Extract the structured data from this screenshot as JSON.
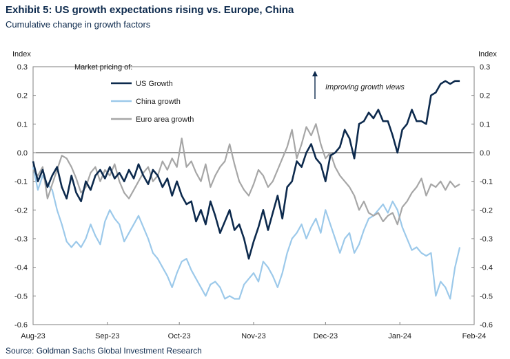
{
  "title": "Exhibit 5: US growth expectations rising vs. Europe, China",
  "subtitle": "Cumulative change in growth factors",
  "source": "Source: Goldman Sachs Global Investment Research",
  "chart_data": {
    "type": "line",
    "ylabel_left": "Index",
    "ylabel_right": "Index",
    "ylim": [
      -0.6,
      0.3
    ],
    "yticks": [
      0.3,
      0.2,
      0.1,
      0.0,
      -0.1,
      -0.2,
      -0.3,
      -0.4,
      -0.5,
      -0.6
    ],
    "ytick_labels": [
      "0.3",
      "0.2",
      "0.1",
      "0.0",
      "-0.1",
      "-0.2",
      "-0.3",
      "-0.4",
      "-0.5",
      "-0.6"
    ],
    "xlim": [
      "2023-08-01",
      "2024-02-01"
    ],
    "xticks": [
      "2023-08-01",
      "2023-09-01",
      "2023-10-01",
      "2023-11-01",
      "2023-12-01",
      "2024-01-01",
      "2024-02-01"
    ],
    "xtick_labels": [
      "Aug-23",
      "Sep-23",
      "Oct-23",
      "Nov-23",
      "Dec-23",
      "Jan-24",
      "Feb-24"
    ],
    "grid": false,
    "zero_line": true,
    "legend_title": "Market pricing of:",
    "legend_position": "top-left",
    "annotation": "Improving growth views",
    "series": [
      {
        "name": "US Growth",
        "color": "#0d2a4d",
        "x": [
          "2023-08-01",
          "2023-08-03",
          "2023-08-05",
          "2023-08-07",
          "2023-08-09",
          "2023-08-11",
          "2023-08-13",
          "2023-08-15",
          "2023-08-17",
          "2023-08-19",
          "2023-08-21",
          "2023-08-23",
          "2023-08-25",
          "2023-08-27",
          "2023-08-29",
          "2023-08-31",
          "2023-09-02",
          "2023-09-04",
          "2023-09-06",
          "2023-09-08",
          "2023-09-10",
          "2023-09-12",
          "2023-09-14",
          "2023-09-16",
          "2023-09-18",
          "2023-09-20",
          "2023-09-22",
          "2023-09-24",
          "2023-09-26",
          "2023-09-28",
          "2023-09-30",
          "2023-10-02",
          "2023-10-04",
          "2023-10-06",
          "2023-10-08",
          "2023-10-10",
          "2023-10-12",
          "2023-10-14",
          "2023-10-16",
          "2023-10-18",
          "2023-10-20",
          "2023-10-22",
          "2023-10-24",
          "2023-10-26",
          "2023-10-28",
          "2023-10-30",
          "2023-11-01",
          "2023-11-03",
          "2023-11-05",
          "2023-11-07",
          "2023-11-09",
          "2023-11-11",
          "2023-11-13",
          "2023-11-15",
          "2023-11-17",
          "2023-11-19",
          "2023-11-21",
          "2023-11-23",
          "2023-11-25",
          "2023-11-27",
          "2023-11-29",
          "2023-12-01",
          "2023-12-03",
          "2023-12-05",
          "2023-12-07",
          "2023-12-09",
          "2023-12-11",
          "2023-12-13",
          "2023-12-15",
          "2023-12-17",
          "2023-12-19",
          "2023-12-21",
          "2023-12-23",
          "2023-12-25",
          "2023-12-27",
          "2023-12-29",
          "2023-12-31",
          "2024-01-02",
          "2024-01-04",
          "2024-01-06",
          "2024-01-08",
          "2024-01-10",
          "2024-01-12",
          "2024-01-14",
          "2024-01-16",
          "2024-01-18",
          "2024-01-20",
          "2024-01-22",
          "2024-01-24",
          "2024-01-26"
        ],
        "values": [
          -0.03,
          -0.1,
          -0.06,
          -0.12,
          -0.08,
          -0.05,
          -0.12,
          -0.16,
          -0.08,
          -0.14,
          -0.17,
          -0.1,
          -0.13,
          -0.08,
          -0.06,
          -0.09,
          -0.05,
          -0.09,
          -0.07,
          -0.1,
          -0.06,
          -0.09,
          -0.04,
          -0.08,
          -0.11,
          -0.06,
          -0.08,
          -0.12,
          -0.09,
          -0.15,
          -0.1,
          -0.15,
          -0.18,
          -0.17,
          -0.24,
          -0.2,
          -0.25,
          -0.17,
          -0.22,
          -0.28,
          -0.24,
          -0.2,
          -0.27,
          -0.25,
          -0.3,
          -0.37,
          -0.31,
          -0.26,
          -0.2,
          -0.27,
          -0.21,
          -0.15,
          -0.23,
          -0.12,
          -0.1,
          -0.03,
          -0.05,
          0.0,
          0.03,
          -0.02,
          -0.04,
          -0.1,
          -0.01,
          0.0,
          0.02,
          0.08,
          0.05,
          -0.02,
          0.1,
          0.11,
          0.14,
          0.12,
          0.15,
          0.11,
          0.11,
          0.06,
          0.0,
          0.08,
          0.1,
          0.15,
          0.11,
          0.11,
          0.1,
          0.2,
          0.21,
          0.24,
          0.25,
          0.24,
          0.25,
          0.25
        ]
      },
      {
        "name": "China growth",
        "color": "#9cc9ea",
        "x": [
          "2023-08-01",
          "2023-08-03",
          "2023-08-05",
          "2023-08-07",
          "2023-08-09",
          "2023-08-11",
          "2023-08-13",
          "2023-08-15",
          "2023-08-17",
          "2023-08-19",
          "2023-08-21",
          "2023-08-23",
          "2023-08-25",
          "2023-08-27",
          "2023-08-29",
          "2023-08-31",
          "2023-09-02",
          "2023-09-04",
          "2023-09-06",
          "2023-09-08",
          "2023-09-10",
          "2023-09-12",
          "2023-09-14",
          "2023-09-16",
          "2023-09-18",
          "2023-09-20",
          "2023-09-22",
          "2023-09-24",
          "2023-09-26",
          "2023-09-28",
          "2023-09-30",
          "2023-10-02",
          "2023-10-04",
          "2023-10-06",
          "2023-10-08",
          "2023-10-10",
          "2023-10-12",
          "2023-10-14",
          "2023-10-16",
          "2023-10-18",
          "2023-10-20",
          "2023-10-22",
          "2023-10-24",
          "2023-10-26",
          "2023-10-28",
          "2023-10-30",
          "2023-11-01",
          "2023-11-03",
          "2023-11-05",
          "2023-11-07",
          "2023-11-09",
          "2023-11-11",
          "2023-11-13",
          "2023-11-15",
          "2023-11-17",
          "2023-11-19",
          "2023-11-21",
          "2023-11-23",
          "2023-11-25",
          "2023-11-27",
          "2023-11-29",
          "2023-12-01",
          "2023-12-03",
          "2023-12-05",
          "2023-12-07",
          "2023-12-09",
          "2023-12-11",
          "2023-12-13",
          "2023-12-15",
          "2023-12-17",
          "2023-12-19",
          "2023-12-21",
          "2023-12-23",
          "2023-12-25",
          "2023-12-27",
          "2023-12-29",
          "2023-12-31",
          "2024-01-02",
          "2024-01-04",
          "2024-01-06",
          "2024-01-08",
          "2024-01-10",
          "2024-01-12",
          "2024-01-14",
          "2024-01-16",
          "2024-01-18",
          "2024-01-20",
          "2024-01-22",
          "2024-01-24",
          "2024-01-26"
        ],
        "values": [
          -0.05,
          -0.13,
          -0.08,
          -0.11,
          -0.13,
          -0.2,
          -0.25,
          -0.31,
          -0.33,
          -0.31,
          -0.33,
          -0.3,
          -0.25,
          -0.29,
          -0.32,
          -0.24,
          -0.2,
          -0.23,
          -0.25,
          -0.31,
          -0.28,
          -0.25,
          -0.22,
          -0.26,
          -0.3,
          -0.35,
          -0.37,
          -0.4,
          -0.43,
          -0.47,
          -0.42,
          -0.38,
          -0.37,
          -0.41,
          -0.44,
          -0.47,
          -0.5,
          -0.46,
          -0.45,
          -0.47,
          -0.51,
          -0.5,
          -0.51,
          -0.51,
          -0.46,
          -0.44,
          -0.42,
          -0.45,
          -0.38,
          -0.4,
          -0.43,
          -0.47,
          -0.42,
          -0.35,
          -0.3,
          -0.28,
          -0.25,
          -0.3,
          -0.26,
          -0.23,
          -0.28,
          -0.2,
          -0.25,
          -0.3,
          -0.35,
          -0.3,
          -0.28,
          -0.35,
          -0.32,
          -0.27,
          -0.23,
          -0.22,
          -0.2,
          -0.18,
          -0.21,
          -0.17,
          -0.2,
          -0.26,
          -0.3,
          -0.34,
          -0.33,
          -0.35,
          -0.36,
          -0.35,
          -0.5,
          -0.45,
          -0.47,
          -0.51,
          -0.4,
          -0.33
        ]
      },
      {
        "name": "Euro area growth",
        "color": "#a6a6a6",
        "x": [
          "2023-08-01",
          "2023-08-03",
          "2023-08-05",
          "2023-08-07",
          "2023-08-09",
          "2023-08-11",
          "2023-08-13",
          "2023-08-15",
          "2023-08-17",
          "2023-08-19",
          "2023-08-21",
          "2023-08-23",
          "2023-08-25",
          "2023-08-27",
          "2023-08-29",
          "2023-08-31",
          "2023-09-02",
          "2023-09-04",
          "2023-09-06",
          "2023-09-08",
          "2023-09-10",
          "2023-09-12",
          "2023-09-14",
          "2023-09-16",
          "2023-09-18",
          "2023-09-20",
          "2023-09-22",
          "2023-09-24",
          "2023-09-26",
          "2023-09-28",
          "2023-09-30",
          "2023-10-02",
          "2023-10-04",
          "2023-10-06",
          "2023-10-08",
          "2023-10-10",
          "2023-10-12",
          "2023-10-14",
          "2023-10-16",
          "2023-10-18",
          "2023-10-20",
          "2023-10-22",
          "2023-10-24",
          "2023-10-26",
          "2023-10-28",
          "2023-10-30",
          "2023-11-01",
          "2023-11-03",
          "2023-11-05",
          "2023-11-07",
          "2023-11-09",
          "2023-11-11",
          "2023-11-13",
          "2023-11-15",
          "2023-11-17",
          "2023-11-19",
          "2023-11-21",
          "2023-11-23",
          "2023-11-25",
          "2023-11-27",
          "2023-11-29",
          "2023-12-01",
          "2023-12-03",
          "2023-12-05",
          "2023-12-07",
          "2023-12-09",
          "2023-12-11",
          "2023-12-13",
          "2023-12-15",
          "2023-12-17",
          "2023-12-19",
          "2023-12-21",
          "2023-12-23",
          "2023-12-25",
          "2023-12-27",
          "2023-12-29",
          "2023-12-31",
          "2024-01-02",
          "2024-01-04",
          "2024-01-06",
          "2024-01-08",
          "2024-01-10",
          "2024-01-12",
          "2024-01-14",
          "2024-01-16",
          "2024-01-18",
          "2024-01-20",
          "2024-01-22",
          "2024-01-24",
          "2024-01-26"
        ],
        "values": [
          -0.06,
          -0.08,
          -0.05,
          -0.16,
          -0.11,
          -0.06,
          -0.01,
          -0.02,
          -0.05,
          -0.09,
          -0.14,
          -0.12,
          -0.07,
          -0.05,
          -0.1,
          -0.06,
          -0.08,
          -0.04,
          -0.1,
          -0.14,
          -0.16,
          -0.13,
          -0.1,
          -0.07,
          -0.05,
          -0.1,
          -0.08,
          -0.03,
          -0.06,
          -0.02,
          -0.05,
          0.05,
          -0.05,
          -0.03,
          -0.07,
          -0.1,
          -0.04,
          -0.12,
          -0.08,
          -0.05,
          -0.03,
          0.03,
          -0.04,
          -0.1,
          -0.13,
          -0.15,
          -0.11,
          -0.06,
          -0.08,
          -0.12,
          -0.1,
          -0.06,
          -0.02,
          0.02,
          0.08,
          -0.02,
          0.03,
          0.09,
          0.06,
          0.1,
          0.03,
          -0.02,
          0.0,
          -0.05,
          -0.08,
          -0.1,
          -0.12,
          -0.15,
          -0.2,
          -0.17,
          -0.21,
          -0.22,
          -0.21,
          -0.24,
          -0.22,
          -0.21,
          -0.25,
          -0.19,
          -0.17,
          -0.14,
          -0.12,
          -0.09,
          -0.15,
          -0.11,
          -0.12,
          -0.1,
          -0.13,
          -0.1,
          -0.12,
          -0.11
        ]
      }
    ]
  }
}
